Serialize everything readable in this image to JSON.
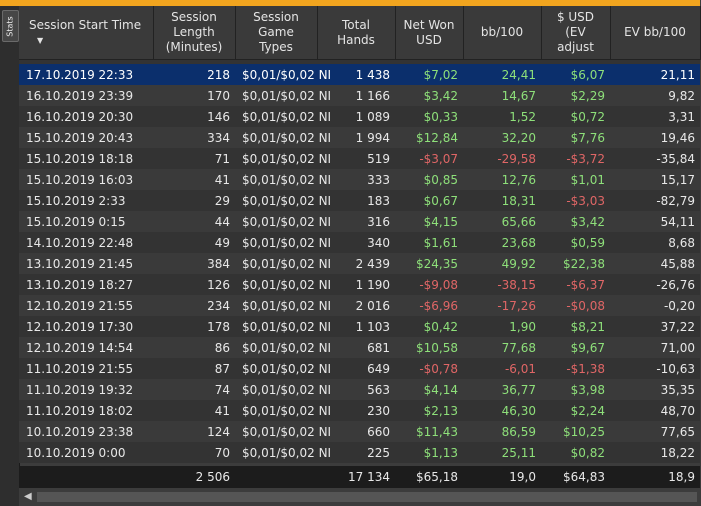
{
  "sidebar": {
    "tab_label": "Stats"
  },
  "columns": [
    "Session Start Time",
    "Session Length (Minutes)",
    "Session Game Types",
    "Total Hands",
    "Net Won USD",
    "bb/100",
    "$ USD (EV adjust",
    "EV bb/100"
  ],
  "colors": {
    "positive": "#8ee07a",
    "negative": "#e06666",
    "selected_row": "#0b2f6c",
    "top_strip": "#f2a51f"
  },
  "rows": [
    [
      "17.10.2019 22:33",
      "218",
      "$0,01/$0,02 NI",
      "1 438",
      "$7,02",
      "24,41",
      "$6,07",
      "21,11"
    ],
    [
      "16.10.2019 23:39",
      "170",
      "$0,01/$0,02 NI",
      "1 166",
      "$3,42",
      "14,67",
      "$2,29",
      "9,82"
    ],
    [
      "16.10.2019 20:30",
      "146",
      "$0,01/$0,02 NI",
      "1 089",
      "$0,33",
      "1,52",
      "$0,72",
      "3,31"
    ],
    [
      "15.10.2019 20:43",
      "334",
      "$0,01/$0,02 NI",
      "1 994",
      "$12,84",
      "32,20",
      "$7,76",
      "19,46"
    ],
    [
      "15.10.2019 18:18",
      "71",
      "$0,01/$0,02 NI",
      "519",
      "-$3,07",
      "-29,58",
      "-$3,72",
      "-35,84"
    ],
    [
      "15.10.2019 16:03",
      "41",
      "$0,01/$0,02 NI",
      "333",
      "$0,85",
      "12,76",
      "$1,01",
      "15,17"
    ],
    [
      "15.10.2019 2:33",
      "29",
      "$0,01/$0,02 NI",
      "183",
      "$0,67",
      "18,31",
      "-$3,03",
      "-82,79"
    ],
    [
      "15.10.2019 0:15",
      "44",
      "$0,01/$0,02 NI",
      "316",
      "$4,15",
      "65,66",
      "$3,42",
      "54,11"
    ],
    [
      "14.10.2019 22:48",
      "49",
      "$0,01/$0,02 NI",
      "340",
      "$1,61",
      "23,68",
      "$0,59",
      "8,68"
    ],
    [
      "13.10.2019 21:45",
      "384",
      "$0,01/$0,02 NI",
      "2 439",
      "$24,35",
      "49,92",
      "$22,38",
      "45,88"
    ],
    [
      "13.10.2019 18:27",
      "126",
      "$0,01/$0,02 NI",
      "1 190",
      "-$9,08",
      "-38,15",
      "-$6,37",
      "-26,76"
    ],
    [
      "12.10.2019 21:55",
      "234",
      "$0,01/$0,02 NI",
      "2 016",
      "-$6,96",
      "-17,26",
      "-$0,08",
      "-0,20"
    ],
    [
      "12.10.2019 17:30",
      "178",
      "$0,01/$0,02 NI",
      "1 103",
      "$0,42",
      "1,90",
      "$8,21",
      "37,22"
    ],
    [
      "12.10.2019 14:54",
      "86",
      "$0,01/$0,02 NI",
      "681",
      "$10,58",
      "77,68",
      "$9,67",
      "71,00"
    ],
    [
      "11.10.2019 21:55",
      "87",
      "$0,01/$0,02 NI",
      "649",
      "-$0,78",
      "-6,01",
      "-$1,38",
      "-10,63"
    ],
    [
      "11.10.2019 19:32",
      "74",
      "$0,01/$0,02 NI",
      "563",
      "$4,14",
      "36,77",
      "$3,98",
      "35,35"
    ],
    [
      "11.10.2019 18:02",
      "41",
      "$0,01/$0,02 NI",
      "230",
      "$2,13",
      "46,30",
      "$2,24",
      "48,70"
    ],
    [
      "10.10.2019 23:38",
      "124",
      "$0,01/$0,02 NI",
      "660",
      "$11,43",
      "86,59",
      "$10,25",
      "77,65"
    ],
    [
      "10.10.2019 0:00",
      "70",
      "$0,01/$0,02 NI",
      "225",
      "$1,13",
      "25,11",
      "$0,82",
      "18,22"
    ]
  ],
  "totals": [
    "",
    "2 506",
    "",
    "17 134",
    "$65,18",
    "19,0",
    "$64,83",
    "18,9"
  ]
}
